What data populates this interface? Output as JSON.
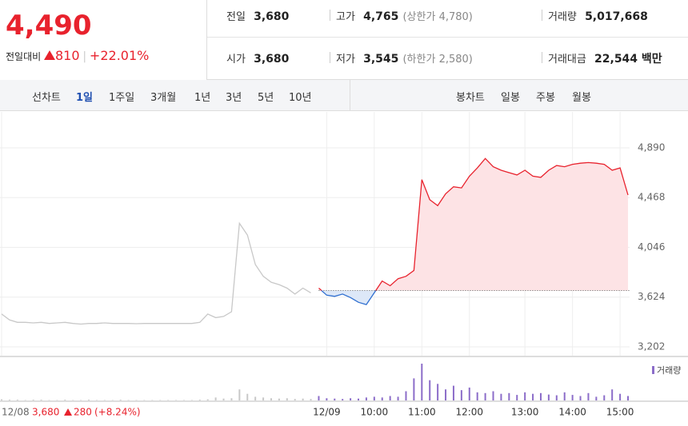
{
  "header": {
    "price": "4,490",
    "change_label": "전일대비",
    "change": "810",
    "change_pct": "+22.01%"
  },
  "stats": [
    [
      {
        "label": "전일",
        "value": "3,680"
      },
      {
        "label": "고가",
        "value": "4,765",
        "note": "(상한가 4,780)"
      },
      {
        "label": "거래량",
        "value": "5,017,668"
      }
    ],
    [
      {
        "label": "시가",
        "value": "3,680"
      },
      {
        "label": "저가",
        "value": "3,545",
        "note": "(하한가 2,580)"
      },
      {
        "label": "거래대금",
        "value": "22,544 백만"
      }
    ]
  ],
  "tabs": {
    "line_label": "선차트",
    "line_options": [
      "1일",
      "1주일",
      "3개월",
      "1년",
      "3년",
      "5년",
      "10년"
    ],
    "candle_label": "봉차트",
    "candle_options": [
      "일봉",
      "주봉",
      "월봉"
    ]
  },
  "chart_data": [
    {
      "type": "line",
      "categories": [
        "12/08",
        null,
        null,
        null,
        null,
        null,
        null,
        null,
        null,
        null,
        null,
        null,
        null,
        null,
        null,
        null,
        null,
        null,
        null,
        null,
        null,
        null,
        null,
        null,
        null,
        null,
        null,
        null,
        null,
        null,
        null,
        null,
        null,
        null,
        null,
        null,
        null,
        null,
        null,
        null,
        null,
        "12/09",
        null,
        null,
        null,
        null,
        null,
        "10:00",
        null,
        null,
        null,
        null,
        null,
        "11:00",
        null,
        null,
        null,
        null,
        null,
        "12:00",
        null,
        null,
        null,
        null,
        null,
        null,
        "13:00",
        null,
        null,
        null,
        null,
        null,
        "14:00",
        null,
        null,
        null,
        null,
        null,
        "15:00",
        null
      ],
      "series": [
        {
          "color": "#c8c8c8",
          "values": [
            3480,
            3430,
            3410,
            3410,
            3405,
            3410,
            3400,
            3405,
            3410,
            3400,
            3395,
            3400,
            3400,
            3405,
            3400,
            3400,
            3400,
            3398,
            3400,
            3400,
            3400,
            3400,
            3400,
            3400,
            3400,
            3410,
            3480,
            3450,
            3460,
            3500,
            4250,
            4150,
            3900,
            3800,
            3750,
            3730,
            3700,
            3650,
            3700,
            3660,
            null,
            null,
            null,
            null,
            null,
            null,
            null,
            null,
            null,
            null,
            null,
            null,
            null,
            null,
            null,
            null,
            null,
            null,
            null,
            null,
            null,
            null,
            null,
            null,
            null,
            null,
            null,
            null,
            null,
            null,
            null,
            null,
            null,
            null,
            null,
            null,
            null,
            null,
            null,
            null
          ]
        },
        {
          "color": "#e8222d",
          "color_below": "#2f6fd0",
          "area": true,
          "fill_color": "#fde3e5",
          "fill_color_below": "#dde8f8",
          "values": [
            null,
            null,
            null,
            null,
            null,
            null,
            null,
            null,
            null,
            null,
            null,
            null,
            null,
            null,
            null,
            null,
            null,
            null,
            null,
            null,
            null,
            null,
            null,
            null,
            null,
            null,
            null,
            null,
            null,
            null,
            null,
            null,
            null,
            null,
            null,
            null,
            null,
            null,
            null,
            null,
            3700,
            3640,
            3630,
            3650,
            3620,
            3580,
            3560,
            3660,
            3760,
            3720,
            3780,
            3800,
            3850,
            4620,
            4450,
            4400,
            4500,
            4560,
            4550,
            4650,
            4720,
            4800,
            4730,
            4700,
            4680,
            4660,
            4700,
            4650,
            4640,
            4700,
            4740,
            4730,
            4750,
            4760,
            4765,
            4760,
            4750,
            4700,
            4720,
            4490
          ]
        }
      ],
      "baseline": 3680,
      "ylim": [
        3127,
        5195
      ],
      "yticks": [
        {
          "value": 3202,
          "label": "3,202"
        },
        {
          "value": 3624,
          "label": "3,624"
        },
        {
          "value": 4046,
          "label": "4,046"
        },
        {
          "value": 4468,
          "label": "4,468"
        },
        {
          "value": 4890,
          "label": "4,890"
        }
      ],
      "grid": true,
      "prev_day": {
        "close": "3,680",
        "change": "280",
        "change_pct": "(+8.24%)"
      }
    },
    {
      "type": "bar",
      "series": [
        {
          "color": "#c8c8c8",
          "values": [
            3,
            2,
            2,
            1,
            2,
            2,
            1,
            1,
            2,
            1,
            1,
            2,
            1,
            1,
            1,
            2,
            1,
            1,
            1,
            1,
            1,
            1,
            1,
            1,
            1,
            2,
            3,
            8,
            5,
            6,
            30,
            18,
            10,
            8,
            6,
            5,
            6,
            4,
            5,
            4,
            null,
            null,
            null,
            null,
            null,
            null,
            null,
            null,
            null,
            null,
            null,
            null,
            null,
            null,
            null,
            null,
            null,
            null,
            null,
            null,
            null,
            null,
            null,
            null,
            null,
            null,
            null,
            null,
            null,
            null,
            null,
            null,
            null,
            null,
            null,
            null,
            null,
            null,
            null,
            null
          ]
        },
        {
          "name": "거래량",
          "color": "#8c6dc9",
          "values": [
            null,
            null,
            null,
            null,
            null,
            null,
            null,
            null,
            null,
            null,
            null,
            null,
            null,
            null,
            null,
            null,
            null,
            null,
            null,
            null,
            null,
            null,
            null,
            null,
            null,
            null,
            null,
            null,
            null,
            null,
            null,
            null,
            null,
            null,
            null,
            null,
            null,
            null,
            null,
            null,
            12,
            6,
            5,
            4,
            6,
            5,
            8,
            10,
            8,
            12,
            10,
            25,
            60,
            100,
            55,
            45,
            30,
            40,
            28,
            35,
            22,
            20,
            25,
            18,
            20,
            15,
            22,
            18,
            20,
            16,
            14,
            22,
            15,
            12,
            20,
            10,
            14,
            30,
            18,
            12
          ]
        }
      ],
      "ylim": [
        0,
        100
      ]
    }
  ]
}
